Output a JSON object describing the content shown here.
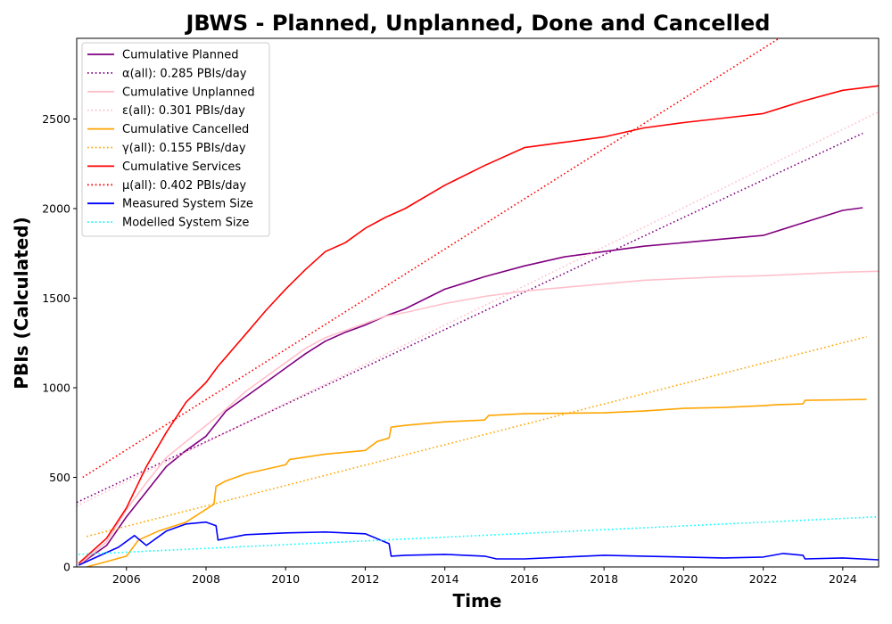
{
  "chart_data": {
    "type": "line",
    "title": "JBWS - Planned, Unplanned, Done  and Cancelled",
    "xlabel": "Time",
    "ylabel": "PBIs (Calculated)",
    "xlim": [
      2004.75,
      2024.9
    ],
    "ylim": [
      0,
      2950
    ],
    "x_ticks": [
      "2006",
      "2008",
      "2010",
      "2012",
      "2014",
      "2016",
      "2018",
      "2020",
      "2022",
      "2024"
    ],
    "y_ticks": [
      "0",
      "500",
      "1000",
      "1500",
      "2000",
      "2500"
    ],
    "grid": false,
    "legend_position": "top-left",
    "series": [
      {
        "name": "Cumulative Planned",
        "color": "#800080",
        "style": "solid",
        "x": [
          2004.8,
          2005.5,
          2006.0,
          2006.5,
          2007.0,
          2007.5,
          2008.0,
          2008.5,
          2009.0,
          2009.5,
          2010.0,
          2010.5,
          2011.0,
          2011.5,
          2012.0,
          2012.5,
          2013.0,
          2014.0,
          2015.0,
          2016.0,
          2017.0,
          2018.0,
          2019.0,
          2020.0,
          2021.0,
          2022.0,
          2023.0,
          2024.0,
          2024.5
        ],
        "y": [
          10,
          120,
          280,
          420,
          560,
          650,
          730,
          870,
          950,
          1030,
          1110,
          1190,
          1260,
          1310,
          1350,
          1400,
          1440,
          1550,
          1620,
          1680,
          1730,
          1760,
          1790,
          1810,
          1830,
          1850,
          1920,
          1990,
          2005
        ]
      },
      {
        "name": "α(all): 0.285 PBIs/day",
        "color": "#800080",
        "style": "dotted",
        "x": [
          2004.75,
          2024.5
        ],
        "y": [
          360,
          2420
        ]
      },
      {
        "name": "Cumulative Unplanned",
        "color": "#ffc0cb",
        "style": "solid",
        "x": [
          2004.8,
          2005.5,
          2006.0,
          2006.5,
          2007.0,
          2007.5,
          2008.0,
          2008.5,
          2009.0,
          2009.5,
          2010.0,
          2010.5,
          2011.0,
          2011.5,
          2012.0,
          2012.5,
          2013.0,
          2014.0,
          2015.0,
          2016.0,
          2017.0,
          2018.0,
          2019.0,
          2020.0,
          2021.0,
          2022.0,
          2023.0,
          2024.0,
          2024.9
        ],
        "y": [
          10,
          140,
          320,
          470,
          610,
          700,
          790,
          880,
          980,
          1060,
          1140,
          1220,
          1280,
          1320,
          1360,
          1400,
          1420,
          1470,
          1510,
          1540,
          1560,
          1580,
          1600,
          1610,
          1620,
          1625,
          1635,
          1645,
          1650
        ]
      },
      {
        "name": "ε(all): 0.301 PBIs/day",
        "color": "#ffc0cb",
        "style": "dotted",
        "x": [
          2004.75,
          2024.9
        ],
        "y": [
          340,
          2540
        ]
      },
      {
        "name": "Cumulative Cancelled",
        "color": "#ffa500",
        "style": "solid",
        "x": [
          2005.0,
          2005.5,
          2006.0,
          2006.3,
          2006.8,
          2007.5,
          2008.2,
          2008.25,
          2008.5,
          2009.0,
          2010.0,
          2010.1,
          2011.0,
          2012.0,
          2012.3,
          2012.6,
          2012.65,
          2013.0,
          2014.0,
          2015.0,
          2015.1,
          2016.0,
          2018.0,
          2019.0,
          2020.0,
          2021.0,
          2022.0,
          2022.3,
          2023.0,
          2023.05,
          2024.0,
          2024.6
        ],
        "y": [
          0,
          30,
          60,
          150,
          200,
          250,
          350,
          450,
          480,
          520,
          570,
          600,
          630,
          650,
          700,
          720,
          780,
          790,
          810,
          820,
          845,
          855,
          860,
          870,
          885,
          890,
          900,
          905,
          910,
          930,
          933,
          935
        ]
      },
      {
        "name": "γ(all): 0.155 PBIs/day",
        "color": "#ffa500",
        "style": "dotted",
        "x": [
          2005.0,
          2024.6
        ],
        "y": [
          170,
          1285
        ]
      },
      {
        "name": "Cumulative Services",
        "color": "#ff0000",
        "style": "solid",
        "x": [
          2004.8,
          2005.5,
          2006.0,
          2006.5,
          2007.0,
          2007.5,
          2008.0,
          2008.3,
          2009.0,
          2009.5,
          2010.0,
          2010.5,
          2011.0,
          2011.5,
          2012.0,
          2012.5,
          2013.0,
          2014.0,
          2015.0,
          2016.0,
          2017.0,
          2018.0,
          2019.0,
          2020.0,
          2021.0,
          2022.0,
          2023.0,
          2024.0,
          2024.9
        ],
        "y": [
          20,
          160,
          330,
          560,
          750,
          920,
          1030,
          1120,
          1300,
          1430,
          1550,
          1660,
          1760,
          1810,
          1890,
          1950,
          2000,
          2130,
          2240,
          2340,
          2370,
          2400,
          2450,
          2480,
          2505,
          2530,
          2600,
          2660,
          2685
        ]
      },
      {
        "name": "μ(all): 0.402 PBIs/day",
        "color": "#ff0000",
        "style": "dotted",
        "x": [
          2004.9,
          2022.4
        ],
        "y": [
          500,
          2950
        ]
      },
      {
        "name": "Measured System Size",
        "color": "#0000ff",
        "style": "solid",
        "x": [
          2004.8,
          2005.3,
          2005.8,
          2006.2,
          2006.5,
          2007.0,
          2007.5,
          2008.0,
          2008.25,
          2008.3,
          2009.0,
          2010.0,
          2011.0,
          2012.0,
          2012.6,
          2012.65,
          2013.0,
          2014.0,
          2015.0,
          2015.3,
          2016.0,
          2017.0,
          2018.0,
          2019.0,
          2020.0,
          2021.0,
          2022.0,
          2022.5,
          2023.0,
          2023.05,
          2024.0,
          2024.9
        ],
        "y": [
          10,
          60,
          110,
          175,
          120,
          200,
          240,
          250,
          230,
          150,
          180,
          190,
          195,
          185,
          130,
          60,
          65,
          70,
          60,
          45,
          45,
          55,
          65,
          60,
          55,
          50,
          55,
          75,
          65,
          45,
          50,
          40
        ]
      },
      {
        "name": "Modelled System Size",
        "color": "#00ffff",
        "style": "dotted",
        "x": [
          2004.8,
          2024.9
        ],
        "y": [
          70,
          280
        ]
      }
    ]
  }
}
